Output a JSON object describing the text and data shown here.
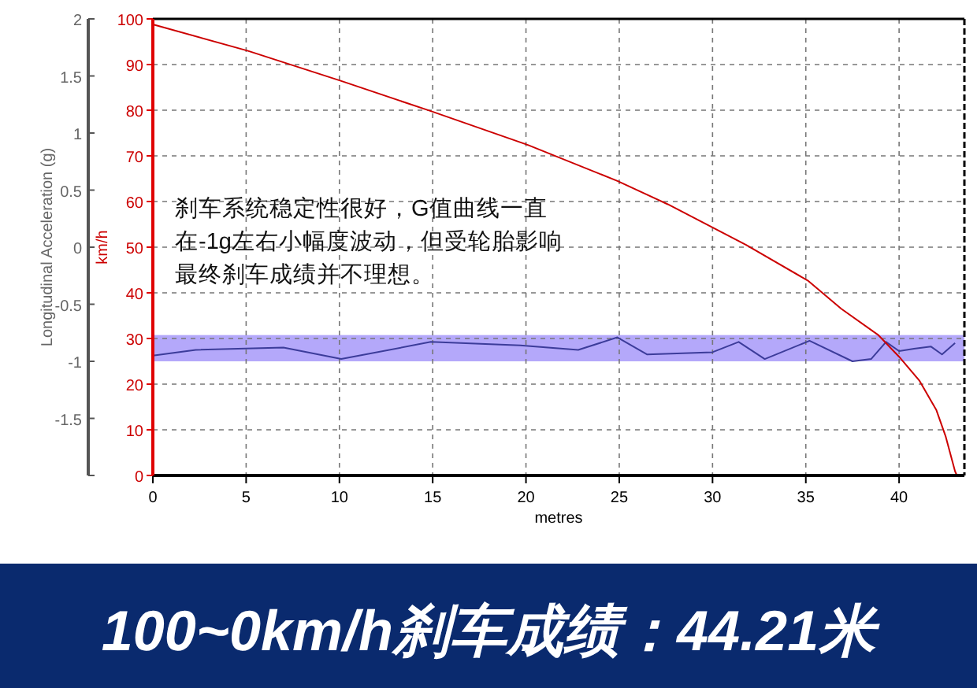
{
  "chart_data": {
    "type": "line",
    "title": "100~0km/h刹车成绩：44.21米",
    "xlabel": "metres",
    "ylabel": "km/h",
    "y2label": "Longitudinal Acceleration (g)",
    "annotations": [
      "刹车系统稳定性很好，G值曲线一直在-1g左右小幅度波动，但受轮胎影响最终刹车成绩并不理想。"
    ],
    "xlim": [
      0,
      43.5
    ],
    "xticks": [
      0,
      5,
      10,
      15,
      20,
      25,
      30,
      35,
      40
    ],
    "ylim": [
      0,
      100
    ],
    "yticks": [
      0,
      10,
      20,
      30,
      40,
      50,
      60,
      70,
      80,
      90,
      100
    ],
    "y2lim": [
      -2,
      2
    ],
    "y2ticks": [
      {
        "value": -2,
        "label": null
      },
      -1.5,
      -1,
      -0.5,
      0,
      0.5,
      1,
      1.5,
      2
    ],
    "grid": true,
    "line_style": "solid",
    "bands": [
      {
        "axis": "y2",
        "from": -1,
        "to": -0.77,
        "color": "#b4a8fa"
      }
    ],
    "series": [
      {
        "color": "#3c3c9a",
        "axis": "y2",
        "x": [
          0,
          2.3,
          7,
          10.1,
          14.9,
          19.7,
          22.8,
          24.9,
          26.5,
          30,
          31.4,
          32.8,
          35.2,
          37.5,
          38.5,
          39.3,
          40,
          40.8,
          41.7,
          42.3,
          43
        ],
        "values": [
          -0.95,
          -0.9,
          -0.88,
          -0.98,
          -0.83,
          -0.86,
          -0.9,
          -0.79,
          -0.94,
          -0.92,
          -0.83,
          -0.98,
          -0.82,
          -1,
          -0.98,
          -0.83,
          -0.91,
          -0.89,
          -0.87,
          -0.94,
          -0.84
        ]
      },
      {
        "color": "#cc0000",
        "x": [
          0,
          5.1,
          10.1,
          14.9,
          20.1,
          24.9,
          27.6,
          31.8,
          35.1,
          36.9,
          38.9,
          40,
          41.1,
          42,
          42.5,
          43,
          43.1
        ],
        "values": [
          98.8,
          93,
          86.4,
          79.8,
          72.4,
          64.5,
          59.4,
          50.5,
          42.7,
          36.5,
          30.7,
          26,
          20.7,
          14.3,
          8.5,
          0.9,
          0
        ]
      }
    ]
  }
}
